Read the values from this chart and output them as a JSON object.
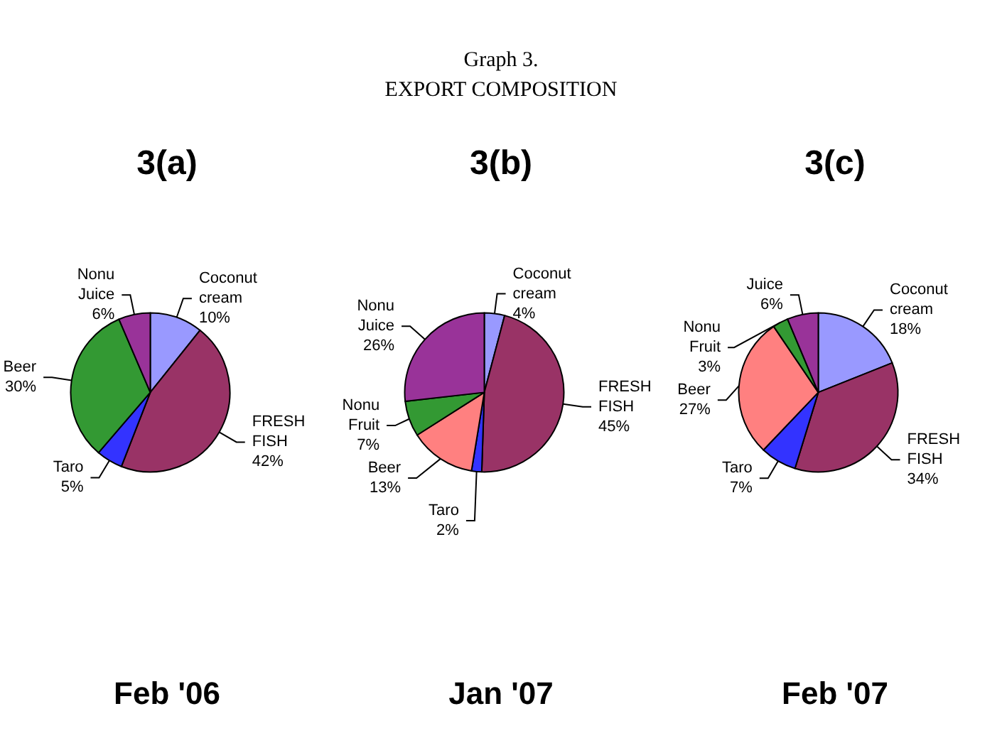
{
  "chart_data": [
    {
      "type": "other",
      "title": "Graph 3.",
      "subtitle": "EXPORT COMPOSITION"
    },
    {
      "type": "pie",
      "title": "3(a)",
      "categories": [
        "Coconut cream",
        "FRESH FISH",
        "Taro",
        "Beer",
        "Nonu Juice"
      ],
      "values": [
        10,
        42,
        5,
        30,
        6
      ],
      "value_labels": [
        "10%",
        "42%",
        "5%",
        "30%",
        "6%"
      ],
      "colors": [
        "#9999ff",
        "#993366",
        "#3333ff",
        "#339933",
        "#993399"
      ],
      "annotations": [
        "Feb '06"
      ]
    },
    {
      "type": "pie",
      "title": "3(b)",
      "categories": [
        "Coconut cream",
        "FRESH FISH",
        "Taro",
        "Beer",
        "Nonu Fruit",
        "Nonu Juice"
      ],
      "values": [
        4,
        45,
        2,
        13,
        7,
        26
      ],
      "value_labels": [
        "4%",
        "45%",
        "2%",
        "13%",
        "7%",
        "26%"
      ],
      "colors": [
        "#9999ff",
        "#993366",
        "#3333ff",
        "#ff8080",
        "#339933",
        "#993399"
      ],
      "annotations": [
        "Jan '07"
      ]
    },
    {
      "type": "pie",
      "title": "3(c)",
      "categories": [
        "Coconut cream",
        "FRESH FISH",
        "Taro",
        "Beer",
        "Nonu Fruit",
        "Juice"
      ],
      "values": [
        18,
        34,
        7,
        27,
        3,
        6
      ],
      "value_labels": [
        "18%",
        "34%",
        "7%",
        "27%",
        "3%",
        "6%"
      ],
      "colors": [
        "#9999ff",
        "#993366",
        "#3333ff",
        "#ff8080",
        "#339933",
        "#993399"
      ],
      "annotations": [
        "Feb '07"
      ]
    }
  ]
}
